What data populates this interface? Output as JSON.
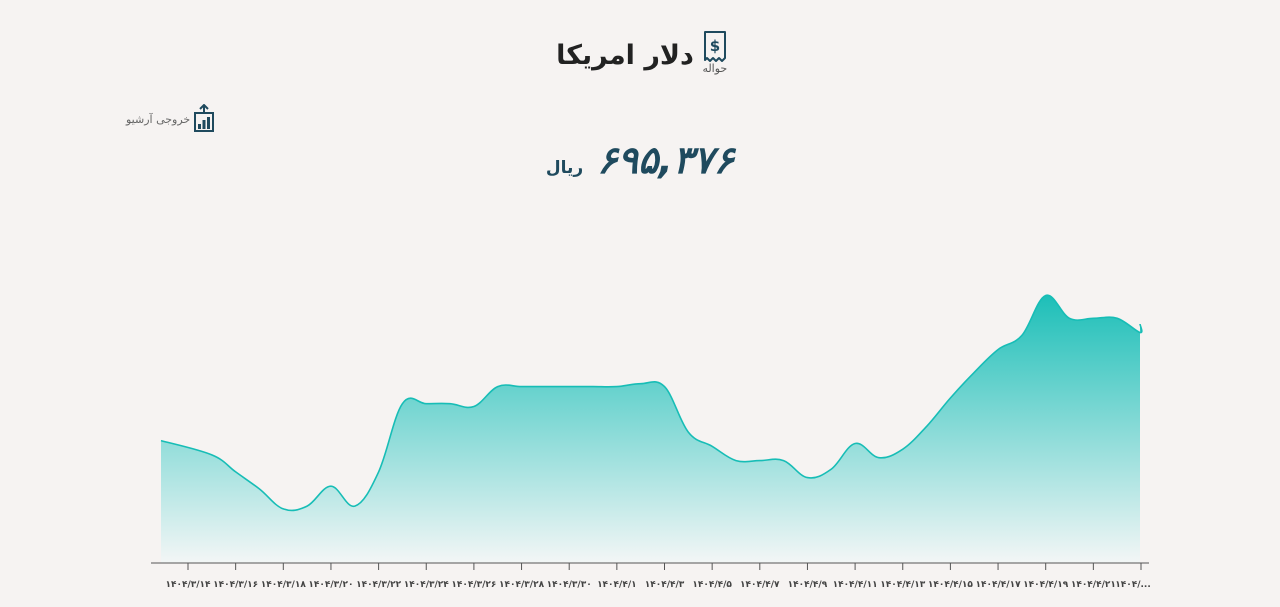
{
  "header": {
    "title": "دلار امریکا",
    "subtitle": "حواله",
    "icon": "dollar-receipt-icon"
  },
  "export": {
    "label": "خروجی آرشیو",
    "icon": "chart-export-icon"
  },
  "price": {
    "value": "۶۹۵,۳۷۶",
    "unit": "ریال"
  },
  "colors": {
    "line": "#17bdb6",
    "fill_top": "#1dbfb8",
    "fill_bottom": "#f3f6f6",
    "text_dark": "#1f4a5e"
  },
  "chart_data": {
    "type": "area",
    "title": "",
    "xlabel": "",
    "ylabel": "",
    "grid": false,
    "x_ticks": [
      "۱۴۰۴/۳/۱۴",
      "۱۴۰۴/۳/۱۶",
      "۱۴۰۴/۳/۱۸",
      "۱۴۰۴/۳/۲۰",
      "۱۴۰۴/۳/۲۲",
      "۱۴۰۴/۳/۲۴",
      "۱۴۰۴/۳/۲۶",
      "۱۴۰۴/۳/۲۸",
      "۱۴۰۴/۳/۳۰",
      "۱۴۰۴/۴/۱",
      "۱۴۰۴/۴/۳",
      "۱۴۰۴/۴/۵",
      "۱۴۰۴/۴/۷",
      "۱۴۰۴/۴/۹",
      "۱۴۰۴/۴/۱۱",
      "۱۴۰۴/۴/۱۳",
      "۱۴۰۴/۴/۱۵",
      "۱۴۰۴/۴/۱۷",
      "۱۴۰۴/۴/۱۹",
      "۱۴۰۴/۴/۲۱",
      "۱۴۰۴/..."
    ],
    "x": [
      0,
      0.5,
      1,
      1.5,
      2,
      2.5,
      3,
      3.5,
      4,
      4.5,
      5,
      5.5,
      6,
      6.5,
      7,
      7.5,
      8,
      8.5,
      9,
      9.5,
      10,
      10.5,
      11,
      11.5,
      12,
      12.5,
      13,
      13.5,
      14,
      14.5,
      15,
      15.5,
      16,
      16.5,
      17,
      17.5,
      18,
      18.5,
      19,
      19.5,
      20,
      20.5
    ],
    "values": [
      463,
      458,
      452,
      446,
      439,
      440,
      447,
      440,
      452,
      476,
      476,
      476,
      475,
      482,
      482,
      482,
      482,
      482,
      482,
      483,
      482,
      466,
      461,
      456,
      456,
      456,
      450,
      453,
      462,
      457,
      460,
      468,
      478,
      487,
      495,
      500,
      514,
      506,
      506,
      506,
      501,
      504
    ],
    "ylim": [
      420,
      530
    ]
  }
}
